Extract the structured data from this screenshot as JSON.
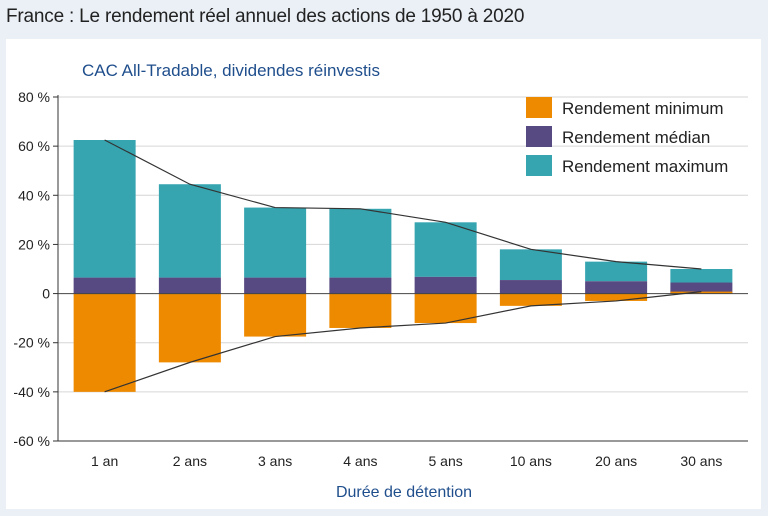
{
  "title": "France : Le rendement réel annuel des actions de 1950 à 2020",
  "chart_data": {
    "type": "bar",
    "subtitle": "CAC All-Tradable, dividendes réinvestis",
    "xlabel": "Durée de détention",
    "ylabel": "",
    "ylim": [
      -60,
      80
    ],
    "yticks": [
      80,
      60,
      40,
      20,
      0,
      -20,
      -40,
      -60
    ],
    "ytick_labels": [
      "80 %",
      "60 %",
      "40 %",
      "20 %",
      "0",
      "-20 %",
      "-40 %",
      "-60 %"
    ],
    "grid": true,
    "legend_position": "top-right",
    "categories": [
      "1 an",
      "2 ans",
      "3 ans",
      "4 ans",
      "5 ans",
      "10 ans",
      "20 ans",
      "30 ans"
    ],
    "series": [
      {
        "name": "Rendement minimum",
        "color": "#ee8a00",
        "values": [
          -40,
          -28,
          -17.5,
          -14,
          -12,
          -5,
          -3,
          0.8
        ]
      },
      {
        "name": "Rendement médian",
        "color": "#574a82",
        "values": [
          6.5,
          6.5,
          6.5,
          6.5,
          6.8,
          5.5,
          5,
          4.5
        ]
      },
      {
        "name": "Rendement maximum",
        "color": "#36a5b0",
        "values": [
          62.5,
          44.5,
          35,
          34.5,
          29,
          18,
          13,
          10
        ]
      }
    ]
  }
}
